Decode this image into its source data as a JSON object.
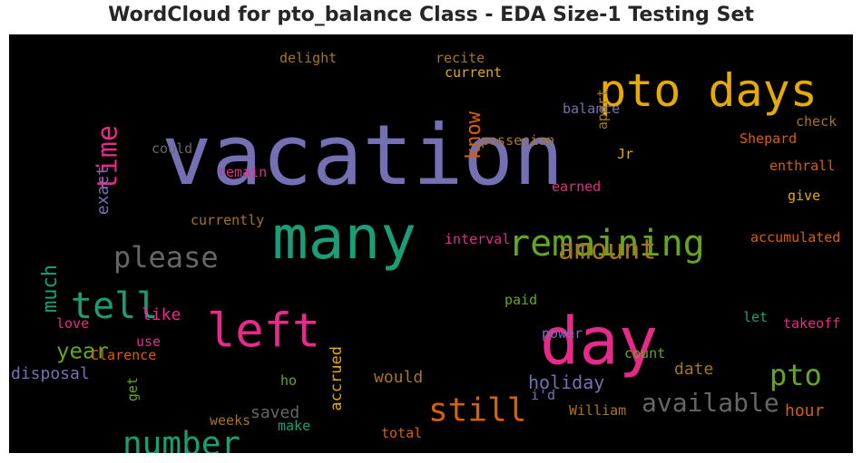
{
  "chart_data": {
    "type": "wordcloud",
    "title": "WordCloud for pto_balance Class - EDA Size-1 Testing Set",
    "background": "#000000",
    "colormap": [
      "#1b9e77",
      "#d95f02",
      "#7570b3",
      "#e7298a",
      "#66a61e",
      "#e6ab02",
      "#a6761d",
      "#666666"
    ],
    "words": [
      {
        "text": "vacation",
        "color": "#7570b3",
        "orientation": "horizontal"
      },
      {
        "text": "pto days",
        "color": "#e6ab02",
        "orientation": "horizontal"
      },
      {
        "text": "many",
        "color": "#1b9e77",
        "orientation": "horizontal"
      },
      {
        "text": "day",
        "color": "#e7298a",
        "orientation": "horizontal"
      },
      {
        "text": "left",
        "color": "#e7298a",
        "orientation": "horizontal"
      },
      {
        "text": "remaining",
        "color": "#66a61e",
        "orientation": "horizontal"
      },
      {
        "text": "tell",
        "color": "#1b9e77",
        "orientation": "horizontal"
      },
      {
        "text": "number",
        "color": "#1b9e77",
        "orientation": "horizontal"
      },
      {
        "text": "please",
        "color": "#666666",
        "orientation": "horizontal"
      },
      {
        "text": "amount",
        "color": "#a6761d",
        "orientation": "horizontal"
      },
      {
        "text": "still",
        "color": "#d95f02",
        "orientation": "horizontal"
      },
      {
        "text": "pto",
        "color": "#66a61e",
        "orientation": "horizontal"
      },
      {
        "text": "available",
        "color": "#666666",
        "orientation": "horizontal"
      },
      {
        "text": "time",
        "color": "#e7298a",
        "orientation": "vertical"
      },
      {
        "text": "much",
        "color": "#1b9e77",
        "orientation": "vertical"
      },
      {
        "text": "year",
        "color": "#66a61e",
        "orientation": "horizontal"
      },
      {
        "text": "know",
        "color": "#d95f02",
        "orientation": "vertical"
      },
      {
        "text": "holiday",
        "color": "#7570b3",
        "orientation": "horizontal"
      },
      {
        "text": "hour",
        "color": "#d95f02",
        "orientation": "horizontal"
      },
      {
        "text": "disposal",
        "color": "#7570b3",
        "orientation": "horizontal"
      },
      {
        "text": "would",
        "color": "#a6761d",
        "orientation": "horizontal"
      },
      {
        "text": "date",
        "color": "#a6761d",
        "orientation": "horizontal"
      },
      {
        "text": "saved",
        "color": "#666666",
        "orientation": "horizontal"
      },
      {
        "text": "exact",
        "color": "#7570b3",
        "orientation": "vertical"
      },
      {
        "text": "like",
        "color": "#e7298a",
        "orientation": "horizontal"
      },
      {
        "text": "accrued",
        "color": "#e6ab02",
        "orientation": "vertical"
      },
      {
        "text": "delight",
        "color": "#a6761d",
        "orientation": "horizontal"
      },
      {
        "text": "recite",
        "color": "#a6761d",
        "orientation": "horizontal"
      },
      {
        "text": "current",
        "color": "#e6ab02",
        "orientation": "horizontal"
      },
      {
        "text": "apart",
        "color": "#a6761d",
        "orientation": "vertical"
      },
      {
        "text": "balance",
        "color": "#7570b3",
        "orientation": "horizontal"
      },
      {
        "text": "check",
        "color": "#a6761d",
        "orientation": "horizontal"
      },
      {
        "text": "Shepard",
        "color": "#d95f02",
        "orientation": "horizontal"
      },
      {
        "text": "possesion",
        "color": "#a6761d",
        "orientation": "horizontal"
      },
      {
        "text": "could",
        "color": "#666666",
        "orientation": "horizontal"
      },
      {
        "text": "Jr",
        "color": "#e6ab02",
        "orientation": "horizontal"
      },
      {
        "text": "enthrall",
        "color": "#d95f02",
        "orientation": "horizontal"
      },
      {
        "text": "remain",
        "color": "#e7298a",
        "orientation": "horizontal"
      },
      {
        "text": "earned",
        "color": "#e7298a",
        "orientation": "horizontal"
      },
      {
        "text": "give",
        "color": "#e6ab02",
        "orientation": "horizontal"
      },
      {
        "text": "currently",
        "color": "#a6761d",
        "orientation": "horizontal"
      },
      {
        "text": "accumulated",
        "color": "#d95f02",
        "orientation": "horizontal"
      },
      {
        "text": "interval",
        "color": "#e7298a",
        "orientation": "horizontal"
      },
      {
        "text": "paid",
        "color": "#66a61e",
        "orientation": "horizontal"
      },
      {
        "text": "let",
        "color": "#1b9e77",
        "orientation": "horizontal"
      },
      {
        "text": "takeoff",
        "color": "#e7298a",
        "orientation": "horizontal"
      },
      {
        "text": "love",
        "color": "#e7298a",
        "orientation": "horizontal"
      },
      {
        "text": "use",
        "color": "#e7298a",
        "orientation": "horizontal"
      },
      {
        "text": "power",
        "color": "#7570b3",
        "orientation": "horizontal"
      },
      {
        "text": "Clarence",
        "color": "#d95f02",
        "orientation": "horizontal"
      },
      {
        "text": "count",
        "color": "#66a61e",
        "orientation": "horizontal"
      },
      {
        "text": "ho",
        "color": "#66a61e",
        "orientation": "horizontal"
      },
      {
        "text": "get",
        "color": "#66a61e",
        "orientation": "vertical"
      },
      {
        "text": "i'd",
        "color": "#7570b3",
        "orientation": "horizontal"
      },
      {
        "text": "William",
        "color": "#a6761d",
        "orientation": "horizontal"
      },
      {
        "text": "weeks",
        "color": "#a6761d",
        "orientation": "horizontal"
      },
      {
        "text": "make",
        "color": "#1b9e77",
        "orientation": "horizontal"
      },
      {
        "text": "total",
        "color": "#d95f02",
        "orientation": "horizontal"
      }
    ]
  }
}
